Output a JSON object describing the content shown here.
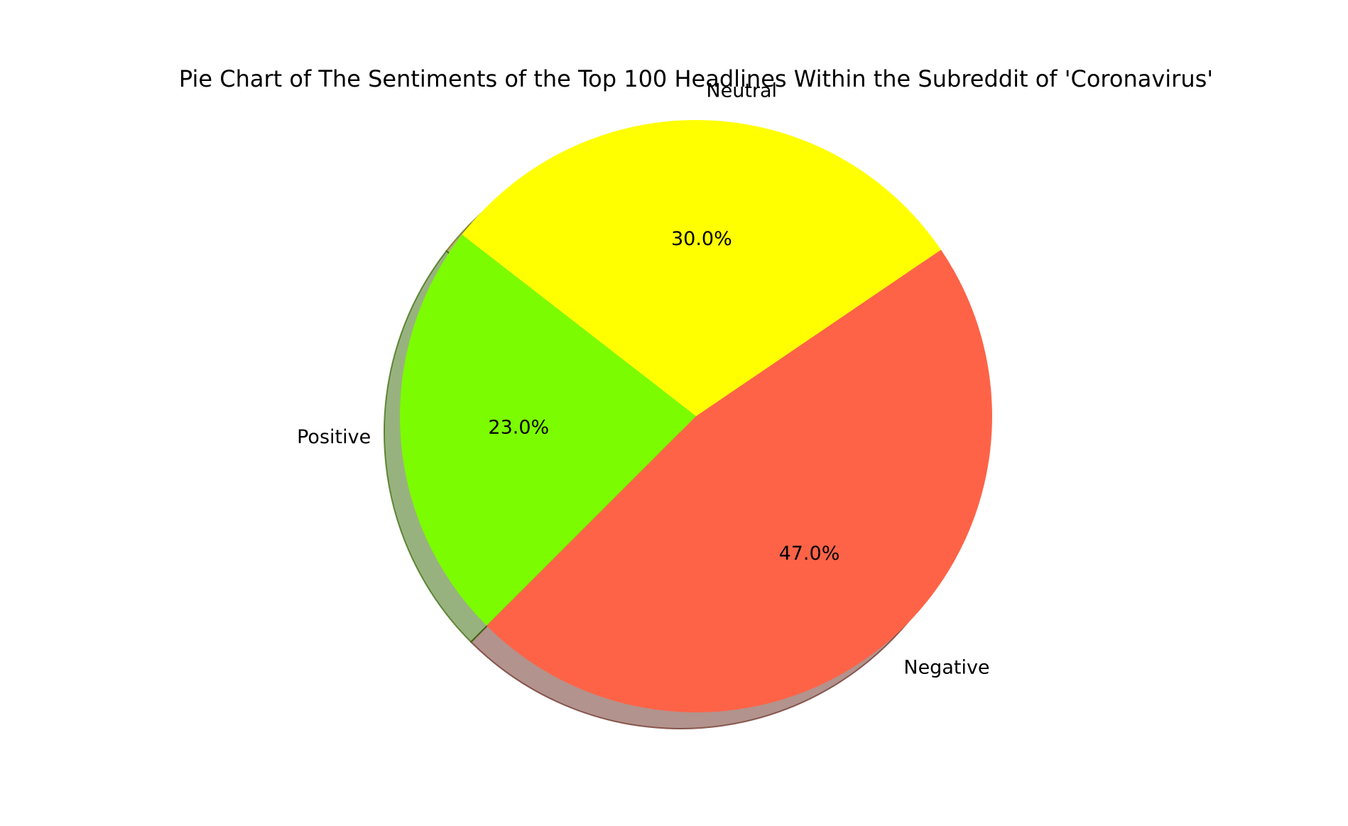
{
  "chart_data": {
    "type": "pie",
    "title": "Pie Chart of The Sentiments of the Top 100 Headlines Within the Subreddit of 'Coronavirus'",
    "labels": [
      "Negative",
      "Neutral",
      "Positive"
    ],
    "values": [
      47.0,
      30.0,
      23.0
    ],
    "autopct": [
      "47.0%",
      "30.0%",
      "23.0%"
    ],
    "colors": [
      "#ff6347",
      "#ffff00",
      "#7cfc00"
    ],
    "shadow": true,
    "legend": "none"
  }
}
